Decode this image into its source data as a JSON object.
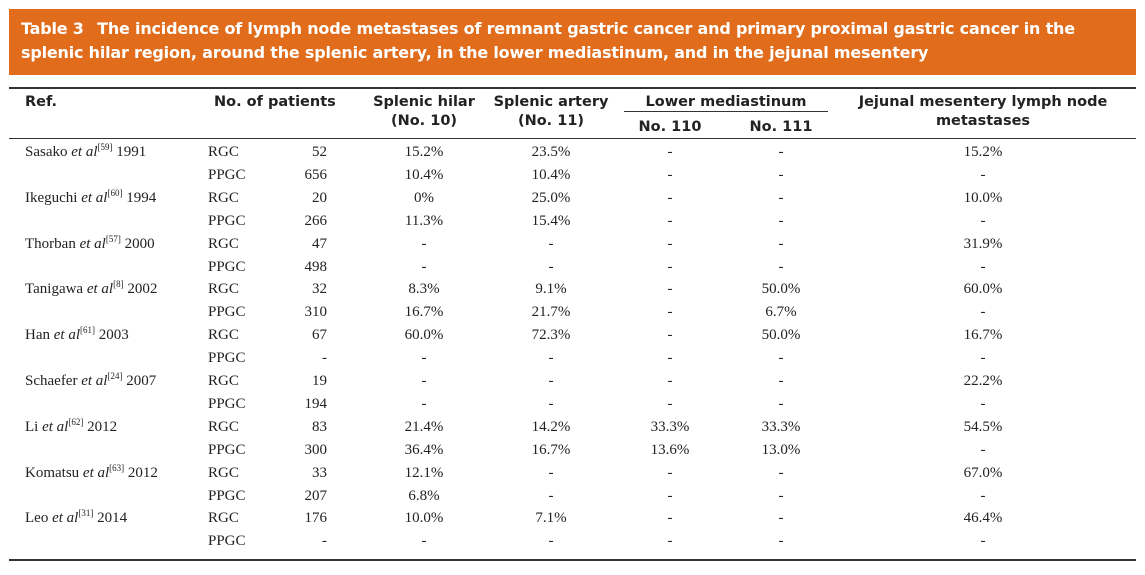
{
  "title": {
    "label": "Table 3",
    "text": "The incidence of lymph node metastases of remnant gastric cancer and primary proximal gastric cancer in the splenic hilar region, around the splenic artery, in the lower mediastinum, and in the jejunal mesentery"
  },
  "headers": {
    "ref": "Ref.",
    "patients": "No. of patients",
    "splenic_hilar_1": "Splenic hilar",
    "splenic_hilar_2": "(No. 10)",
    "splenic_artery_1": "Splenic artery",
    "splenic_artery_2": "(No. 11)",
    "lower_mediastinum": "Lower mediastinum",
    "no110": "No. 110",
    "no111": "No. 111",
    "jejunal_1": "Jejunal mesentery lymph node",
    "jejunal_2": "metastases"
  },
  "colors": {
    "title_bg": "#e06c1c",
    "title_text": "#ffffff",
    "rule": "#333333"
  },
  "rows": [
    {
      "author": "Sasako ",
      "etal": "et al",
      "ref": "[59]",
      "year": " 1991",
      "group": "RGC",
      "n": "52",
      "splenic_hilar": "15.2%",
      "splenic_artery": "23.5%",
      "no110": "-",
      "no111": "-",
      "jejunal": "15.2%"
    },
    {
      "group": "PPGC",
      "n": "656",
      "splenic_hilar": "10.4%",
      "splenic_artery": "10.4%",
      "no110": "-",
      "no111": "-",
      "jejunal": "-"
    },
    {
      "author": "Ikeguchi ",
      "etal": "et al",
      "ref": "[60]",
      "year": " 1994",
      "group": "RGC",
      "n": "20",
      "splenic_hilar": "0%",
      "splenic_artery": "25.0%",
      "no110": "-",
      "no111": "-",
      "jejunal": "10.0%"
    },
    {
      "group": "PPGC",
      "n": "266",
      "splenic_hilar": "11.3%",
      "splenic_artery": "15.4%",
      "no110": "-",
      "no111": "-",
      "jejunal": "-"
    },
    {
      "author": "Thorban ",
      "etal": "et al",
      "ref": "[57]",
      "year": " 2000",
      "group": "RGC",
      "n": "47",
      "splenic_hilar": "-",
      "splenic_artery": "-",
      "no110": "-",
      "no111": "-",
      "jejunal": "31.9%"
    },
    {
      "group": "PPGC",
      "n": "498",
      "splenic_hilar": "-",
      "splenic_artery": "-",
      "no110": "-",
      "no111": "-",
      "jejunal": "-"
    },
    {
      "author": "Tanigawa ",
      "etal": "et al",
      "ref": "[8]",
      "year": " 2002",
      "group": "RGC",
      "n": "32",
      "splenic_hilar": "8.3%",
      "splenic_artery": "9.1%",
      "no110": "-",
      "no111": "50.0%",
      "jejunal": "60.0%"
    },
    {
      "group": "PPGC",
      "n": "310",
      "splenic_hilar": "16.7%",
      "splenic_artery": "21.7%",
      "no110": "-",
      "no111": "6.7%",
      "jejunal": "-"
    },
    {
      "author": "Han ",
      "etal": "et al",
      "ref": "[61]",
      "year": " 2003",
      "group": "RGC",
      "n": "67",
      "splenic_hilar": "60.0%",
      "splenic_artery": "72.3%",
      "no110": "-",
      "no111": "50.0%",
      "jejunal": "16.7%"
    },
    {
      "group": "PPGC",
      "n": "-",
      "splenic_hilar": "-",
      "splenic_artery": "-",
      "no110": "-",
      "no111": "-",
      "jejunal": "-"
    },
    {
      "author": "Schaefer ",
      "etal": "et al",
      "ref": "[24]",
      "year": " 2007",
      "group": "RGC",
      "n": "19",
      "splenic_hilar": "-",
      "splenic_artery": "-",
      "no110": "-",
      "no111": "-",
      "jejunal": "22.2%"
    },
    {
      "group": "PPGC",
      "n": "194",
      "splenic_hilar": "-",
      "splenic_artery": "-",
      "no110": "-",
      "no111": "-",
      "jejunal": "-"
    },
    {
      "author": "Li ",
      "etal": "et al",
      "ref": "[62]",
      "year": " 2012",
      "group": "RGC",
      "n": "83",
      "splenic_hilar": "21.4%",
      "splenic_artery": "14.2%",
      "no110": "33.3%",
      "no111": "33.3%",
      "jejunal": "54.5%"
    },
    {
      "group": "PPGC",
      "n": "300",
      "splenic_hilar": "36.4%",
      "splenic_artery": "16.7%",
      "no110": "13.6%",
      "no111": "13.0%",
      "jejunal": "-"
    },
    {
      "author": "Komatsu ",
      "etal": "et al",
      "ref": "[63]",
      "year": " 2012",
      "group": "RGC",
      "n": "33",
      "splenic_hilar": "12.1%",
      "splenic_artery": "-",
      "no110": "-",
      "no111": "-",
      "jejunal": "67.0%"
    },
    {
      "group": "PPGC",
      "n": "207",
      "splenic_hilar": "6.8%",
      "splenic_artery": "-",
      "no110": "-",
      "no111": "-",
      "jejunal": "-"
    },
    {
      "author": "Leo ",
      "etal": "et al",
      "ref": "[31]",
      "year": " 2014",
      "group": "RGC",
      "n": "176",
      "splenic_hilar": "10.0%",
      "splenic_artery": "7.1%",
      "no110": "-",
      "no111": "-",
      "jejunal": "46.4%"
    },
    {
      "group": "PPGC",
      "n": "-",
      "splenic_hilar": "-",
      "splenic_artery": "-",
      "no110": "-",
      "no111": "-",
      "jejunal": "-"
    }
  ]
}
